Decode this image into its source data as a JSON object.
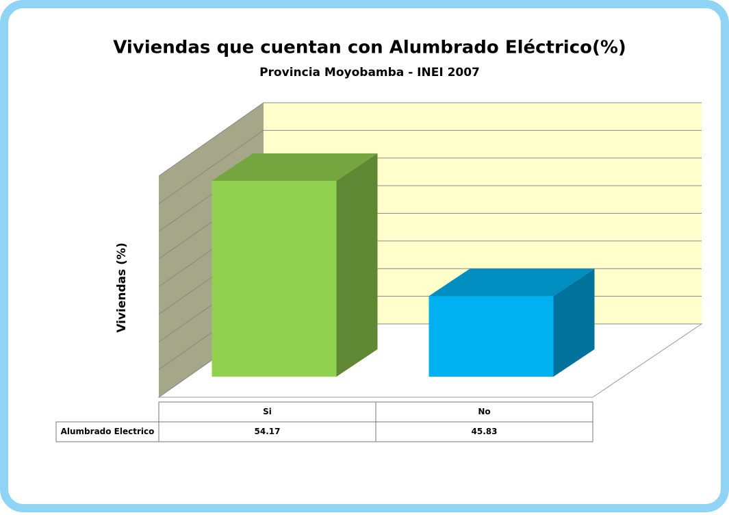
{
  "chart_data": {
    "type": "bar3d",
    "title": "Viviendas que cuentan con Alumbrado Eléctrico(%)",
    "subtitle": "Provincia Moyobamba - INEI 2007",
    "ylabel": "Viviendas (%)",
    "categories": [
      "Si",
      "No"
    ],
    "series": [
      {
        "name": "Alumbrado Electrico",
        "colors": [
          "#92d050",
          "#00b0f0"
        ],
        "values": [
          54.17,
          45.83
        ]
      }
    ],
    "ylim": [
      40,
      56
    ],
    "yticks": [
      40,
      42,
      44,
      46,
      48,
      50,
      52,
      54,
      56
    ],
    "grid": true,
    "data_table": true
  }
}
